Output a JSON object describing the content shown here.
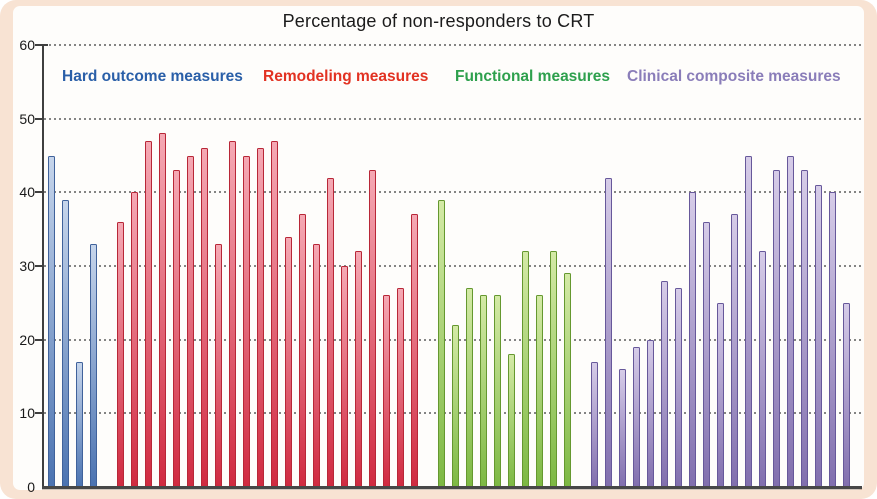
{
  "frame": {
    "background_color": "#f8e3d3",
    "panel_color": "#fefdfb"
  },
  "chart_data": {
    "type": "bar",
    "title": "Percentage of non-responders to CRT",
    "xlabel": "",
    "ylabel": "",
    "ylim": [
      0,
      60
    ],
    "yticks": [
      0,
      10,
      20,
      30,
      40,
      50,
      60
    ],
    "grid": "horizontal dotted",
    "legend_position": "top-inside, one row, text-only colored labels",
    "axis_color": "#3f3f3f",
    "gridline_color": "#6e6e6e",
    "title_color": "#1b1b1b",
    "series": [
      {
        "name": "Hard outcome measures",
        "label_color": "#2a5fa8",
        "bar_top_color": "#c6d5eb",
        "bar_bottom_color": "#4b73b1",
        "bar_border_color": "#40629b",
        "values": [
          45,
          39,
          17,
          33
        ]
      },
      {
        "name": "Remodeling measures",
        "label_color": "#e23222",
        "bar_top_color": "#f5a9b4",
        "bar_bottom_color": "#d02a40",
        "bar_border_color": "#b82737",
        "values": [
          36,
          40,
          47,
          48,
          43,
          45,
          46,
          33,
          47,
          45,
          46,
          47,
          34,
          37,
          33,
          42,
          30,
          32,
          43,
          26,
          27,
          37
        ]
      },
      {
        "name": "Functional measures",
        "label_color": "#2ea04d",
        "bar_top_color": "#d4eaa6",
        "bar_bottom_color": "#7db843",
        "bar_border_color": "#65982f",
        "values": [
          39,
          22,
          27,
          26,
          26,
          18,
          32,
          26,
          32,
          29
        ]
      },
      {
        "name": "Clinical composite measures",
        "label_color": "#8a7db9",
        "bar_top_color": "#d6cce8",
        "bar_bottom_color": "#816fae",
        "bar_border_color": "#67589a",
        "values": [
          17,
          42,
          16,
          19,
          20,
          28,
          27,
          40,
          36,
          25,
          37,
          45,
          32,
          43,
          45,
          43,
          41,
          40,
          25
        ]
      }
    ]
  }
}
